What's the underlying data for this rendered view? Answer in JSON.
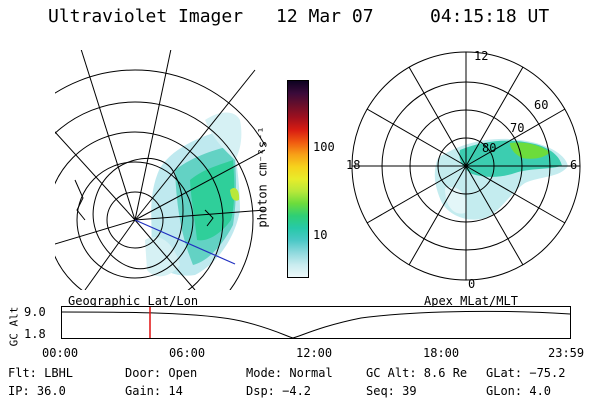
{
  "header": {
    "instrument": "Ultraviolet Imager",
    "date": "12 Mar 07",
    "time": "04:15:18 UT"
  },
  "maps": {
    "left_label": "Geographic Lat/Lon",
    "right_label": "Apex MLat/MLT"
  },
  "colorbar": {
    "unit": "photon cm⁻²s⁻¹",
    "ticks": [
      "100",
      "10"
    ],
    "colors": [
      "#0d0221",
      "#3a0a3a",
      "#6b0f2a",
      "#a0101e",
      "#d81c12",
      "#f05a10",
      "#f7a017",
      "#f6d21c",
      "#e8ec2a",
      "#b8e83a",
      "#6cdc3c",
      "#2fcf75",
      "#27c9a8",
      "#4ac8c6",
      "#8ed9dd",
      "#c9ecef",
      "#eef8fa"
    ]
  },
  "polar": {
    "mlt_labels": [
      "12",
      "18",
      "6",
      "0"
    ],
    "mlat_labels": [
      "60",
      "70",
      "80"
    ]
  },
  "timeline": {
    "y_label": "GC Alt",
    "y_ticks": [
      "9.0",
      "1.8"
    ],
    "x_ticks": [
      "00:00",
      "06:00",
      "12:00",
      "18:00",
      "23:59"
    ]
  },
  "status": {
    "flt": "Flt: LBHL",
    "door": "Door: Open",
    "mode": "Mode: Normal",
    "gc_alt": "GC Alt: 8.6 Re",
    "glat": "GLat: −75.2",
    "ip": "IP: 36.0",
    "gain": "Gain: 14",
    "dsp": "Dsp:    −4.2",
    "seq": "Seq: 39",
    "glon": "GLon:   4.0"
  }
}
